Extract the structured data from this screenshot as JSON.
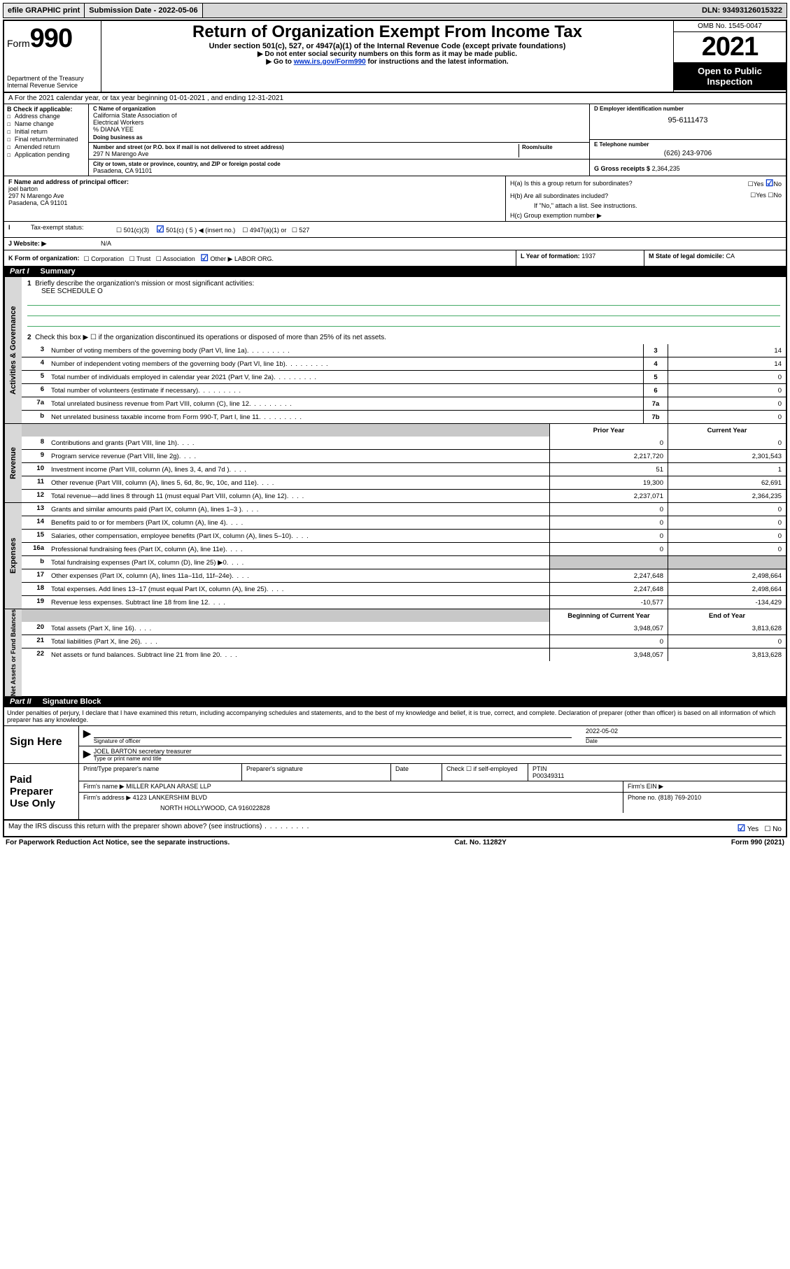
{
  "topbar": {
    "efile": "efile GRAPHIC print",
    "sub_label": "Submission Date - 2022-05-06",
    "dln": "DLN: 93493126015322"
  },
  "header": {
    "form_word": "Form",
    "form_num": "990",
    "dept": "Department of the Treasury Internal Revenue Service",
    "title": "Return of Organization Exempt From Income Tax",
    "sub1": "Under section 501(c), 527, or 4947(a)(1) of the Internal Revenue Code (except private foundations)",
    "sub2a": "▶ Do not enter social security numbers on this form as it may be made public.",
    "sub2b_pre": "▶ Go to ",
    "sub2b_link": "www.irs.gov/Form990",
    "sub2b_post": " for instructions and the latest information.",
    "omb": "OMB No. 1545-0047",
    "year": "2021",
    "open": "Open to Public Inspection"
  },
  "row_a": "A For the 2021 calendar year, or tax year beginning 01-01-2021   , and ending 12-31-2021",
  "box_b": {
    "label": "B Check if applicable:",
    "items": [
      "Address change",
      "Name change",
      "Initial return",
      "Final return/terminated",
      "Amended return",
      "Application pending"
    ]
  },
  "box_c": {
    "name_label": "C Name of organization",
    "name1": "California State Association of",
    "name2": "Electrical Workers",
    "care": "% DIANA YEE",
    "dba_label": "Doing business as",
    "addr_label": "Number and street (or P.O. box if mail is not delivered to street address)",
    "room_label": "Room/suite",
    "addr": "297 N Marengo Ave",
    "city_label": "City or town, state or province, country, and ZIP or foreign postal code",
    "city": "Pasadena, CA  91101"
  },
  "box_d": {
    "label": "D Employer identification number",
    "value": "95-6111473"
  },
  "box_e": {
    "label": "E Telephone number",
    "value": "(626) 243-9706"
  },
  "box_g": {
    "label": "G Gross receipts $",
    "value": "2,364,235"
  },
  "box_f": {
    "label": "F Name and address of principal officer:",
    "name": "joel barton",
    "addr": "297 N Marengo Ave",
    "city": "Pasadena, CA  91101"
  },
  "box_h": {
    "a": "H(a)  Is this a group return for subordinates?",
    "b": "H(b)  Are all subordinates included?",
    "b_note": "If \"No,\" attach a list. See instructions.",
    "c": "H(c)  Group exemption number ▶"
  },
  "row_i": {
    "label": "Tax-exempt status:",
    "opt1": "501(c)(3)",
    "opt2": "501(c) ( 5 ) ◀ (insert no.)",
    "opt3": "4947(a)(1) or",
    "opt4": "527"
  },
  "row_j": {
    "label": "J  Website: ▶",
    "value": "N/A"
  },
  "row_k": {
    "label": "K Form of organization:",
    "value_other": "LABOR ORG.",
    "opts": [
      "Corporation",
      "Trust",
      "Association",
      "Other ▶"
    ]
  },
  "row_l": {
    "label": "L Year of formation:",
    "value": "1937"
  },
  "row_m": {
    "label": "M State of legal domicile:",
    "value": "CA"
  },
  "part1": {
    "num": "Part I",
    "title": "Summary"
  },
  "mission": {
    "line1_num": "1",
    "line1": "Briefly describe the organization's mission or most significant activities:",
    "line1_val": "SEE SCHEDULE O",
    "line2_num": "2",
    "line2": "Check this box ▶ ☐  if the organization discontinued its operations or disposed of more than 25% of its net assets."
  },
  "gov_lines": [
    {
      "n": "3",
      "t": "Number of voting members of the governing body (Part VI, line 1a)",
      "box": "3",
      "v": "14"
    },
    {
      "n": "4",
      "t": "Number of independent voting members of the governing body (Part VI, line 1b)",
      "box": "4",
      "v": "14"
    },
    {
      "n": "5",
      "t": "Total number of individuals employed in calendar year 2021 (Part V, line 2a)",
      "box": "5",
      "v": "0"
    },
    {
      "n": "6",
      "t": "Total number of volunteers (estimate if necessary)",
      "box": "6",
      "v": "0"
    },
    {
      "n": "7a",
      "t": "Total unrelated business revenue from Part VIII, column (C), line 12",
      "box": "7a",
      "v": "0"
    },
    {
      "n": "b",
      "t": "Net unrelated business taxable income from Form 990-T, Part I, line 11",
      "box": "7b",
      "v": "0"
    }
  ],
  "col_hdr": {
    "prior": "Prior Year",
    "current": "Current Year"
  },
  "rev_lines": [
    {
      "n": "8",
      "t": "Contributions and grants (Part VIII, line 1h)",
      "p": "0",
      "c": "0"
    },
    {
      "n": "9",
      "t": "Program service revenue (Part VIII, line 2g)",
      "p": "2,217,720",
      "c": "2,301,543"
    },
    {
      "n": "10",
      "t": "Investment income (Part VIII, column (A), lines 3, 4, and 7d )",
      "p": "51",
      "c": "1"
    },
    {
      "n": "11",
      "t": "Other revenue (Part VIII, column (A), lines 5, 6d, 8c, 9c, 10c, and 11e)",
      "p": "19,300",
      "c": "62,691"
    },
    {
      "n": "12",
      "t": "Total revenue—add lines 8 through 11 (must equal Part VIII, column (A), line 12)",
      "p": "2,237,071",
      "c": "2,364,235"
    }
  ],
  "exp_lines": [
    {
      "n": "13",
      "t": "Grants and similar amounts paid (Part IX, column (A), lines 1–3 )",
      "p": "0",
      "c": "0"
    },
    {
      "n": "14",
      "t": "Benefits paid to or for members (Part IX, column (A), line 4)",
      "p": "0",
      "c": "0"
    },
    {
      "n": "15",
      "t": "Salaries, other compensation, employee benefits (Part IX, column (A), lines 5–10)",
      "p": "0",
      "c": "0"
    },
    {
      "n": "16a",
      "t": "Professional fundraising fees (Part IX, column (A), line 11e)",
      "p": "0",
      "c": "0"
    },
    {
      "n": "b",
      "t": "Total fundraising expenses (Part IX, column (D), line 25) ▶0",
      "p": "",
      "c": "",
      "grey": true
    },
    {
      "n": "17",
      "t": "Other expenses (Part IX, column (A), lines 11a–11d, 11f–24e)",
      "p": "2,247,648",
      "c": "2,498,664"
    },
    {
      "n": "18",
      "t": "Total expenses. Add lines 13–17 (must equal Part IX, column (A), line 25)",
      "p": "2,247,648",
      "c": "2,498,664"
    },
    {
      "n": "19",
      "t": "Revenue less expenses. Subtract line 18 from line 12",
      "p": "-10,577",
      "c": "-134,429"
    }
  ],
  "na_hdr": {
    "begin": "Beginning of Current Year",
    "end": "End of Year"
  },
  "na_lines": [
    {
      "n": "20",
      "t": "Total assets (Part X, line 16)",
      "p": "3,948,057",
      "c": "3,813,628"
    },
    {
      "n": "21",
      "t": "Total liabilities (Part X, line 26)",
      "p": "0",
      "c": "0"
    },
    {
      "n": "22",
      "t": "Net assets or fund balances. Subtract line 21 from line 20",
      "p": "3,948,057",
      "c": "3,813,628"
    }
  ],
  "vtabs": {
    "gov": "Activities & Governance",
    "rev": "Revenue",
    "exp": "Expenses",
    "na": "Net Assets or Fund Balances"
  },
  "part2": {
    "num": "Part II",
    "title": "Signature Block"
  },
  "declare": "Under penalties of perjury, I declare that I have examined this return, including accompanying schedules and statements, and to the best of my knowledge and belief, it is true, correct, and complete. Declaration of preparer (other than officer) is based on all information of which preparer has any knowledge.",
  "sign": {
    "label": "Sign Here",
    "sig_label": "Signature of officer",
    "date_label": "Date",
    "date": "2022-05-02",
    "name": "JOEL BARTON  secretary treasurer",
    "name_label": "Type or print name and title"
  },
  "prep": {
    "label": "Paid Preparer Use Only",
    "h1": "Print/Type preparer's name",
    "h2": "Preparer's signature",
    "h3": "Date",
    "h4_a": "Check ☐ if self-employed",
    "h5": "PTIN",
    "ptin": "P00349311",
    "firm_label": "Firm's name    ▶",
    "firm": "MILLER KAPLAN ARASE LLP",
    "ein_label": "Firm's EIN ▶",
    "addr_label": "Firm's address ▶",
    "addr1": "4123 LANKERSHIM BLVD",
    "addr2": "NORTH HOLLYWOOD, CA  916022828",
    "phone_label": "Phone no.",
    "phone": "(818) 769-2010"
  },
  "discuss": "May the IRS discuss this return with the preparer shown above? (see instructions)",
  "footer": {
    "left": "For Paperwork Reduction Act Notice, see the separate instructions.",
    "mid": "Cat. No. 11282Y",
    "right": "Form 990 (2021)"
  }
}
